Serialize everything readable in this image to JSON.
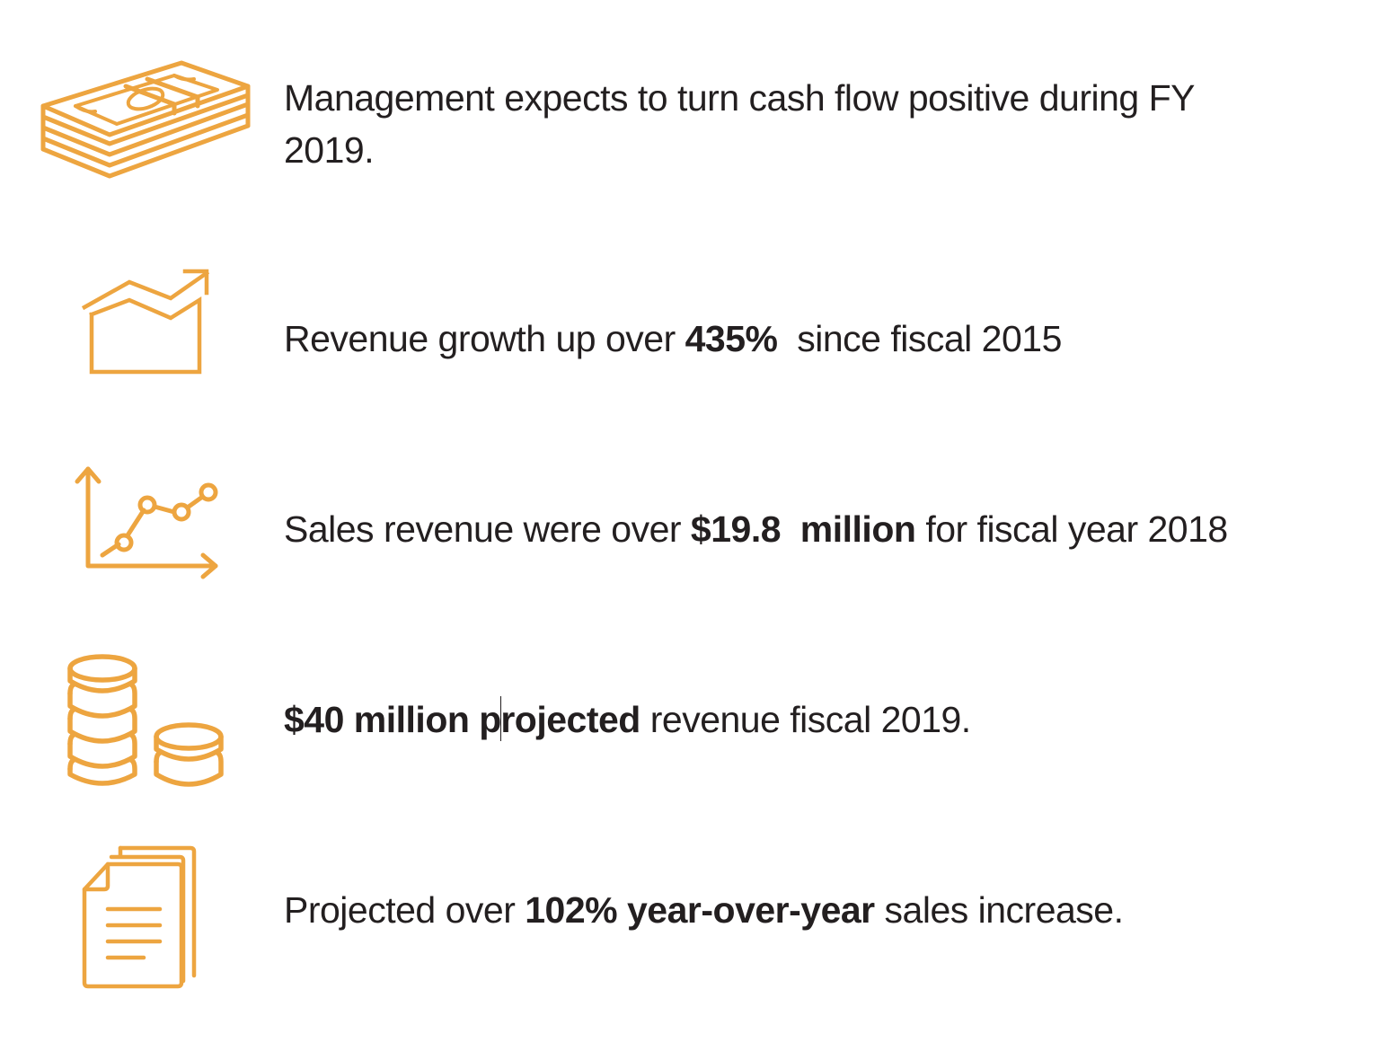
{
  "theme": {
    "icon_color": "#EDA540",
    "text_color": "#231F20"
  },
  "items": [
    {
      "icon": "money-stack-icon",
      "text": "Management expects to turn cash flow positive during FY 2019."
    },
    {
      "icon": "growth-area-chart-icon",
      "pre": "Revenue growth up over ",
      "bold": "435%",
      "post": "  since fiscal 2015"
    },
    {
      "icon": "line-graph-icon",
      "pre": "Sales revenue were over ",
      "bold": "$19.8  million",
      "post": " for fiscal year 2018"
    },
    {
      "icon": "coin-stacks-icon",
      "bold_a": "$40 million p",
      "bold_b": "rojected",
      "post": " revenue fiscal 2019."
    },
    {
      "icon": "documents-icon",
      "pre": "Projected over ",
      "bold": "102% year-over-year",
      "post": " sales increase."
    }
  ]
}
